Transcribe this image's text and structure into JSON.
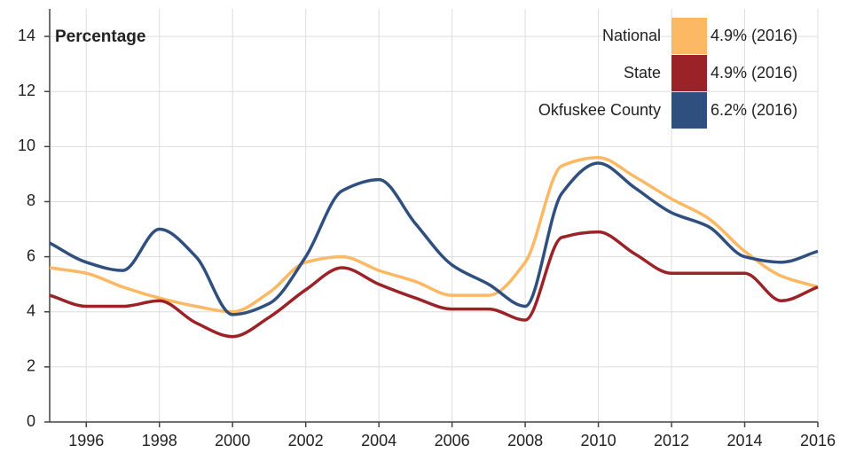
{
  "chart_data": {
    "type": "line",
    "title": "Percentage",
    "x": [
      1995,
      1996,
      1997,
      1998,
      1999,
      2000,
      2001,
      2002,
      2003,
      2004,
      2005,
      2006,
      2007,
      2008,
      2009,
      2010,
      2011,
      2012,
      2013,
      2014,
      2015,
      2016
    ],
    "series": [
      {
        "name": "National",
        "color": "#fdb863",
        "legend_label": "4.9% (2016)",
        "values": [
          5.6,
          5.4,
          4.9,
          4.5,
          4.2,
          4.0,
          4.7,
          5.8,
          6.0,
          5.5,
          5.1,
          4.6,
          4.6,
          5.8,
          9.3,
          9.6,
          8.9,
          8.1,
          7.4,
          6.2,
          5.3,
          4.9
        ]
      },
      {
        "name": "State",
        "color": "#9b2226",
        "legend_label": "4.9% (2016)",
        "values": [
          4.6,
          4.2,
          4.2,
          4.4,
          3.6,
          3.1,
          3.8,
          4.8,
          5.6,
          5.0,
          4.5,
          4.1,
          4.1,
          3.7,
          6.7,
          6.9,
          6.1,
          5.4,
          5.4,
          5.4,
          4.4,
          4.9
        ]
      },
      {
        "name": "Okfuskee County",
        "color": "#2f4f7f",
        "legend_label": "6.2% (2016)",
        "values": [
          6.5,
          5.8,
          5.5,
          7.0,
          6.0,
          3.9,
          4.3,
          6.0,
          8.4,
          8.8,
          7.2,
          5.7,
          5.0,
          4.2,
          8.3,
          9.4,
          8.5,
          7.6,
          7.1,
          6.0,
          5.8,
          6.2
        ]
      }
    ],
    "xlim": [
      1995,
      2016
    ],
    "xticks": [
      1996,
      1998,
      2000,
      2002,
      2004,
      2006,
      2008,
      2010,
      2012,
      2014,
      2016
    ],
    "ylim": [
      0,
      15
    ],
    "yticks": [
      0,
      2,
      4,
      6,
      8,
      10,
      12,
      14
    ],
    "grid": true,
    "legend": "top-right"
  }
}
